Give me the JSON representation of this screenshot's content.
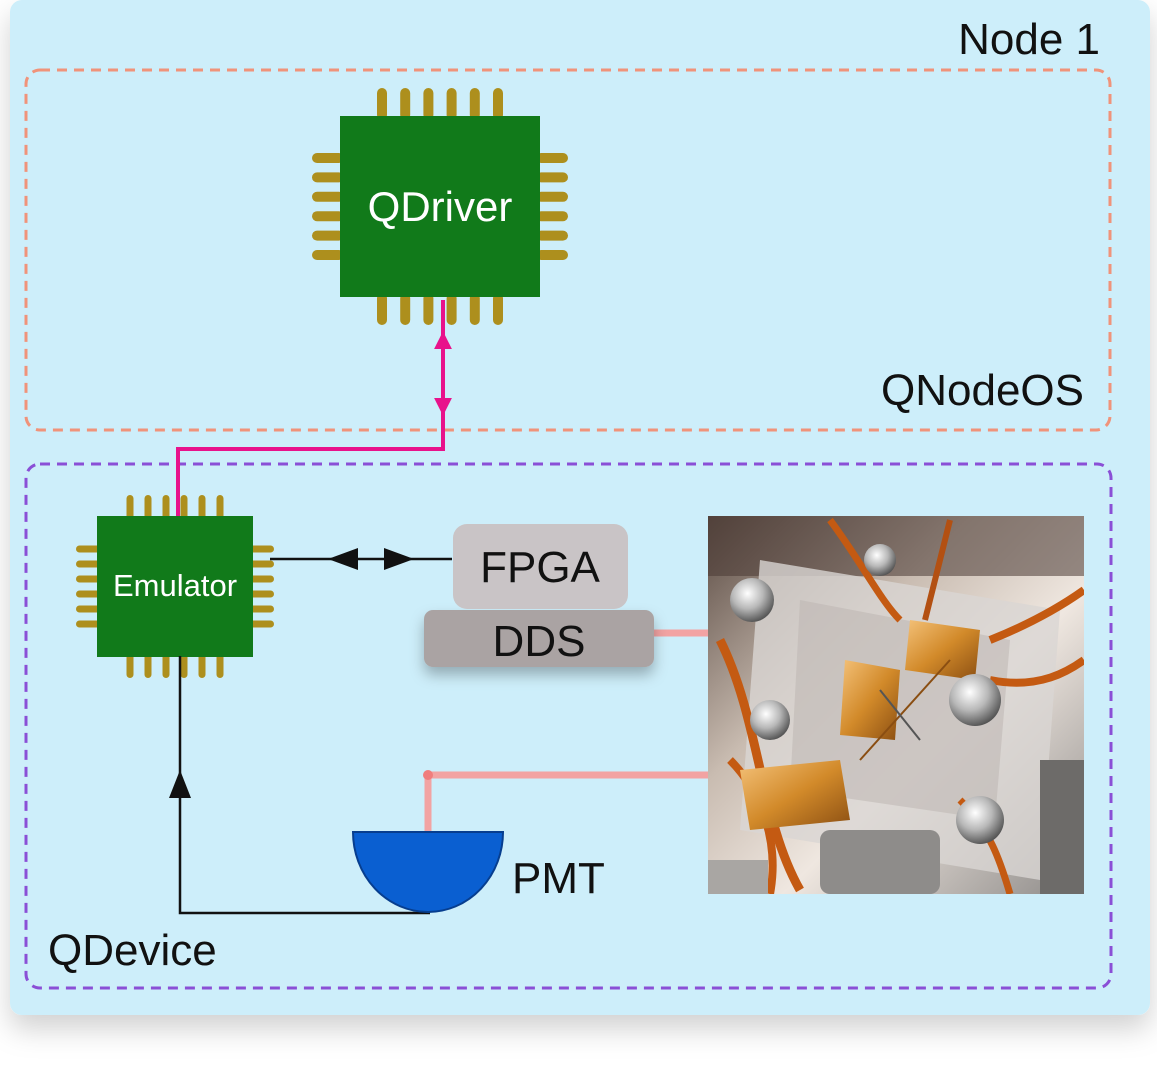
{
  "node": {
    "label": "Node 1"
  },
  "qnodeos": {
    "label": "QNodeOS"
  },
  "qdevice": {
    "label": "QDevice"
  },
  "qdriver": {
    "label": "QDriver"
  },
  "emulator": {
    "label": "Emulator"
  },
  "fpga": {
    "label": "FPGA"
  },
  "dds": {
    "label": "DDS"
  },
  "pmt": {
    "label": "PMT"
  },
  "colors": {
    "node_bg": "#cdeefa",
    "qnodeos_border": "#f0937a",
    "qdevice_border": "#8a4fd6",
    "chip_body": "#117a1a",
    "chip_pins": "#ad8f1d",
    "control_link": "#e8128b",
    "laser_beam": "#f2a3a3",
    "pmt_blue": "#0a5fd1",
    "fpga_box": "#c9c4c6",
    "dds_box": "#aaa3a3"
  }
}
